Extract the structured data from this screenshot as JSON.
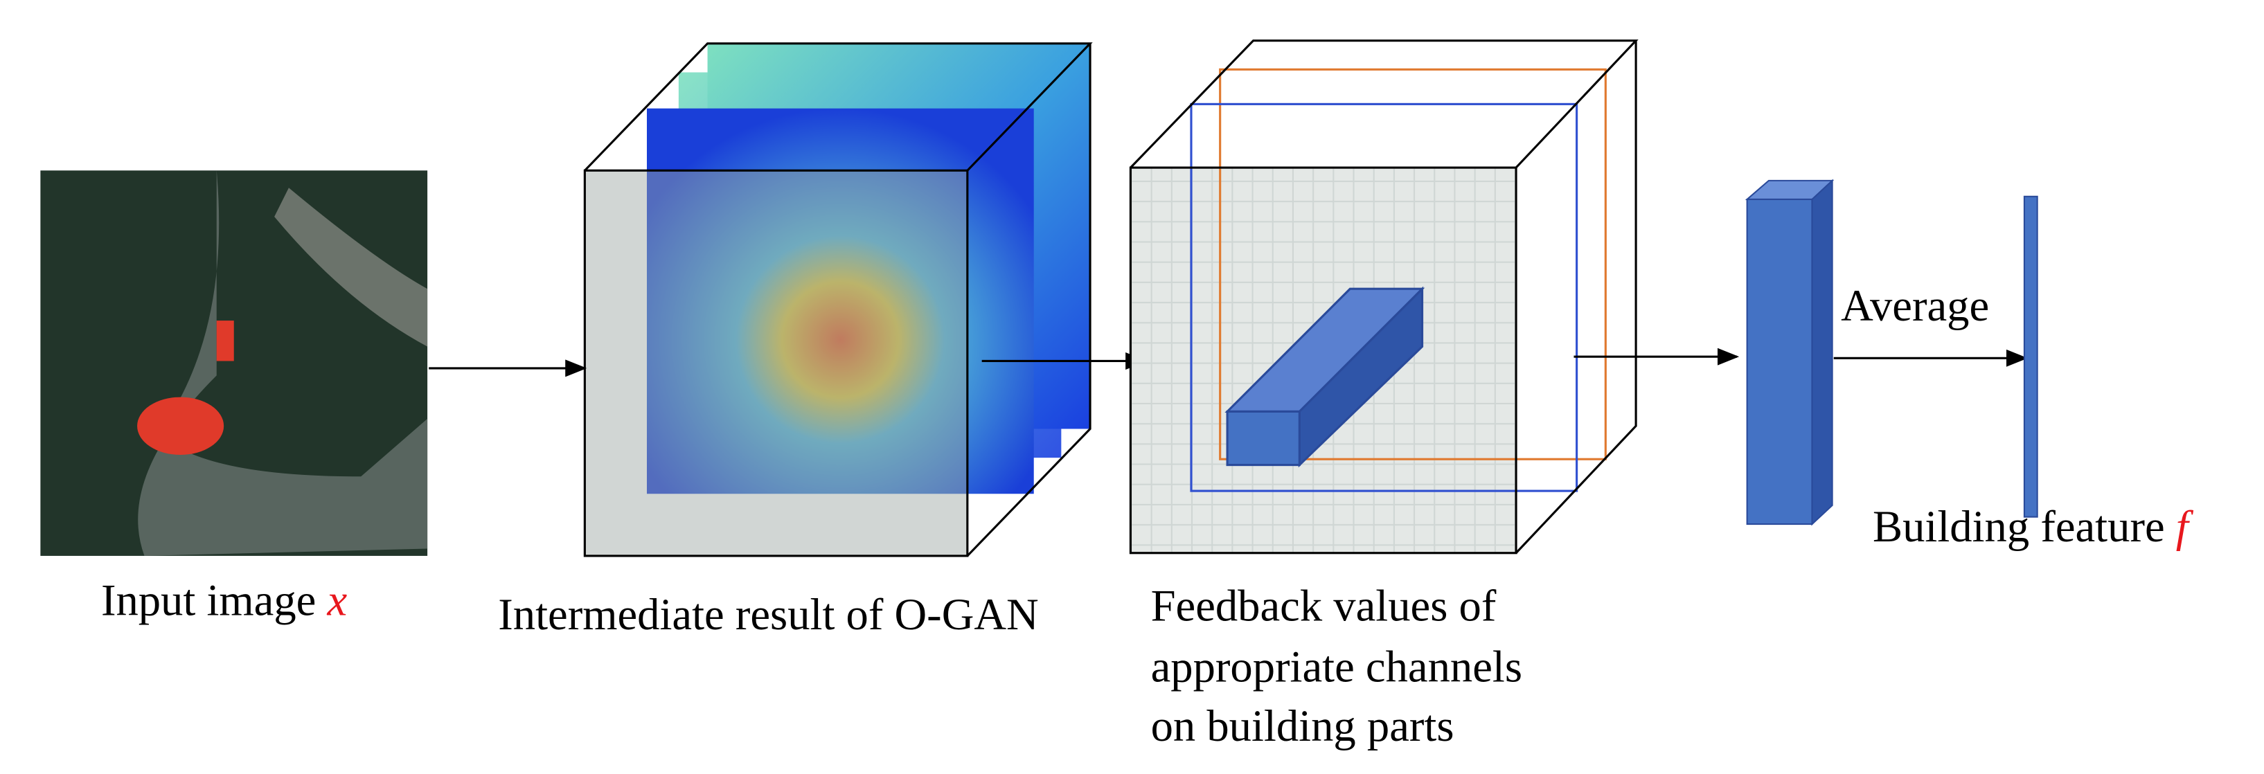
{
  "input": {
    "label": "Input image",
    "symbol": "x"
  },
  "intermediate": {
    "label": "Intermediate result of O-GAN"
  },
  "feedback": {
    "lines": [
      "Feedback values of",
      "appropriate channels",
      "on building parts"
    ]
  },
  "average": {
    "label": "Average"
  },
  "output": {
    "label": "Building feature",
    "symbol": "f"
  }
}
